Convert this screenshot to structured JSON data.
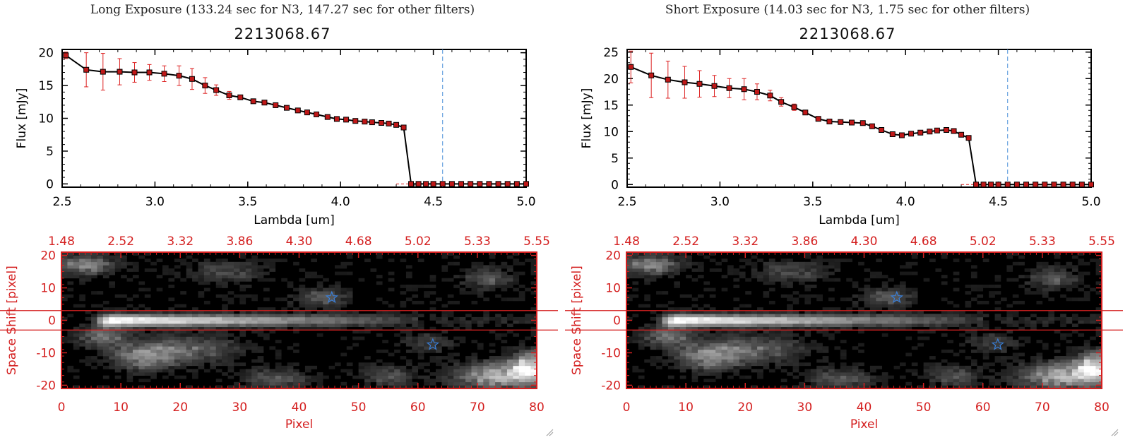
{
  "colors": {
    "spectrum": "#000000",
    "error": "#dd2222",
    "marker": "#c01818",
    "cutoff": "#4a90d9",
    "image_axis": "#d42020",
    "star": "#3a7fd8",
    "ap": "#d42020"
  },
  "chart_data": [
    {
      "type": "line",
      "exposure_title": "Long Exposure (133.24 sec for N3, 147.27 sec for other filters)",
      "title": "2213068.67",
      "xlabel": "Lambda [um]",
      "ylabel": "Flux [mJy]",
      "xlim": [
        2.5,
        5.0
      ],
      "ylim": [
        -0.5,
        20.5
      ],
      "xticks": [
        2.5,
        3.0,
        3.5,
        4.0,
        4.5,
        5.0
      ],
      "xtick_labels": [
        "2.5",
        "3.0",
        "3.5",
        "4.0",
        "4.5",
        "5.0"
      ],
      "yticks": [
        0,
        5,
        10,
        15,
        20
      ],
      "ytick_labels": [
        "0",
        "5",
        "10",
        "15",
        "20"
      ],
      "cutoff_lambda": 4.55,
      "series": [
        {
          "name": "flux",
          "x": [
            2.52,
            2.63,
            2.72,
            2.81,
            2.89,
            2.97,
            3.05,
            3.13,
            3.2,
            3.27,
            3.33,
            3.4,
            3.46,
            3.53,
            3.59,
            3.65,
            3.71,
            3.77,
            3.82,
            3.87,
            3.93,
            3.98,
            4.03,
            4.08,
            4.13,
            4.17,
            4.22,
            4.26,
            4.3,
            4.34,
            4.38,
            4.42,
            4.46,
            4.5,
            4.55,
            4.6,
            4.65,
            4.7,
            4.75,
            4.8,
            4.85,
            4.9,
            4.95,
            5.0
          ],
          "y": [
            19.6,
            17.4,
            17.1,
            17.1,
            17.0,
            17.0,
            16.8,
            16.5,
            16.0,
            15.0,
            14.3,
            13.5,
            13.2,
            12.6,
            12.4,
            12.0,
            11.6,
            11.2,
            10.9,
            10.6,
            10.2,
            9.9,
            9.8,
            9.6,
            9.5,
            9.4,
            9.3,
            9.2,
            9.0,
            8.6,
            0,
            0,
            0,
            0,
            0,
            0,
            0,
            0,
            0,
            0,
            0,
            0,
            0,
            0
          ],
          "err": [
            0.5,
            2.6,
            2.8,
            2.0,
            1.5,
            1.2,
            1.2,
            1.5,
            1.6,
            1.2,
            0.8,
            0.6,
            0.3,
            0.3,
            0.3,
            0.2,
            0.2,
            0.2,
            0.2,
            0.2,
            0.2,
            0.2,
            0.2,
            0.2,
            0.2,
            0.2,
            0.2,
            0.2,
            0.2,
            0.2,
            0,
            0,
            0,
            0,
            0,
            0,
            0,
            0,
            0,
            0,
            0,
            0,
            0,
            0
          ]
        }
      ],
      "image": {
        "xlabel": "Pixel",
        "ylabel": "Space Shift [pixel]",
        "xlim": [
          0,
          80
        ],
        "ylim": [
          -21,
          21
        ],
        "xticks": [
          0,
          10,
          20,
          30,
          40,
          50,
          60,
          70,
          80
        ],
        "xtick_labels": [
          "0",
          "10",
          "20",
          "30",
          "40",
          "50",
          "60",
          "70",
          "80"
        ],
        "yticks": [
          -20,
          -10,
          0,
          10,
          20
        ],
        "ytick_labels": [
          "-20",
          "-10",
          "0",
          "10",
          "20"
        ],
        "top_tick_labels": [
          "1.48",
          "2.52",
          "3.32",
          "3.86",
          "4.30",
          "4.68",
          "5.02",
          "5.33",
          "5.55"
        ],
        "aperture": [
          -3,
          3
        ],
        "stars": [
          [
            45.5,
            7
          ],
          [
            62.5,
            -7.5
          ]
        ]
      }
    },
    {
      "type": "line",
      "exposure_title": "Short Exposure (14.03 sec for N3, 1.75 sec for other filters)",
      "title": "2213068.67",
      "xlabel": "Lambda [um]",
      "ylabel": "Flux [mJy]",
      "xlim": [
        2.5,
        5.0
      ],
      "ylim": [
        -0.5,
        25.5
      ],
      "xticks": [
        2.5,
        3.0,
        3.5,
        4.0,
        4.5,
        5.0
      ],
      "xtick_labels": [
        "2.5",
        "3.0",
        "3.5",
        "4.0",
        "4.5",
        "5.0"
      ],
      "yticks": [
        0,
        5,
        10,
        15,
        20,
        25
      ],
      "ytick_labels": [
        "0",
        "5",
        "10",
        "15",
        "20",
        "25"
      ],
      "cutoff_lambda": 4.55,
      "series": [
        {
          "name": "flux",
          "x": [
            2.52,
            2.63,
            2.72,
            2.81,
            2.89,
            2.97,
            3.05,
            3.13,
            3.2,
            3.27,
            3.33,
            3.4,
            3.46,
            3.53,
            3.59,
            3.65,
            3.71,
            3.77,
            3.82,
            3.87,
            3.93,
            3.98,
            4.03,
            4.08,
            4.13,
            4.17,
            4.22,
            4.26,
            4.3,
            4.34,
            4.38,
            4.42,
            4.46,
            4.5,
            4.55,
            4.6,
            4.65,
            4.7,
            4.75,
            4.8,
            4.85,
            4.9,
            4.95,
            5.0
          ],
          "y": [
            22.2,
            20.6,
            19.8,
            19.3,
            19.0,
            18.6,
            18.2,
            18.0,
            17.5,
            16.8,
            15.6,
            14.6,
            13.6,
            12.4,
            11.9,
            11.8,
            11.7,
            11.6,
            11.0,
            10.3,
            9.5,
            9.3,
            9.6,
            9.8,
            10.0,
            10.2,
            10.3,
            10.1,
            9.4,
            8.8,
            0,
            0,
            0,
            0,
            0,
            0,
            0,
            0,
            0,
            0,
            0,
            0,
            0,
            0
          ],
          "err": [
            3.0,
            4.2,
            3.5,
            3.0,
            2.5,
            2.0,
            1.8,
            2.0,
            1.5,
            1.0,
            0.8,
            0.6,
            0.3,
            0.3,
            0.3,
            0.2,
            0.2,
            0.2,
            0.2,
            0.2,
            0.2,
            0.2,
            0.2,
            0.2,
            0.2,
            0.2,
            0.2,
            0.2,
            0.2,
            0.2,
            0,
            0,
            0,
            0,
            0,
            0,
            0,
            0,
            0,
            0,
            0,
            0,
            0,
            0
          ]
        }
      ],
      "image": {
        "xlabel": "Pixel",
        "ylabel": "Space Shift [pixel]",
        "xlim": [
          0,
          80
        ],
        "ylim": [
          -21,
          21
        ],
        "xticks": [
          0,
          10,
          20,
          30,
          40,
          50,
          60,
          70,
          80
        ],
        "xtick_labels": [
          "0",
          "10",
          "20",
          "30",
          "40",
          "50",
          "60",
          "70",
          "80"
        ],
        "yticks": [
          -20,
          -10,
          0,
          10,
          20
        ],
        "ytick_labels": [
          "-20",
          "-10",
          "0",
          "10",
          "20"
        ],
        "top_tick_labels": [
          "1.48",
          "2.52",
          "3.32",
          "3.86",
          "4.30",
          "4.68",
          "5.02",
          "5.33",
          "5.55"
        ],
        "aperture": [
          -3,
          3
        ],
        "stars": [
          [
            45.5,
            7
          ],
          [
            62.5,
            -7.5
          ]
        ]
      }
    }
  ]
}
